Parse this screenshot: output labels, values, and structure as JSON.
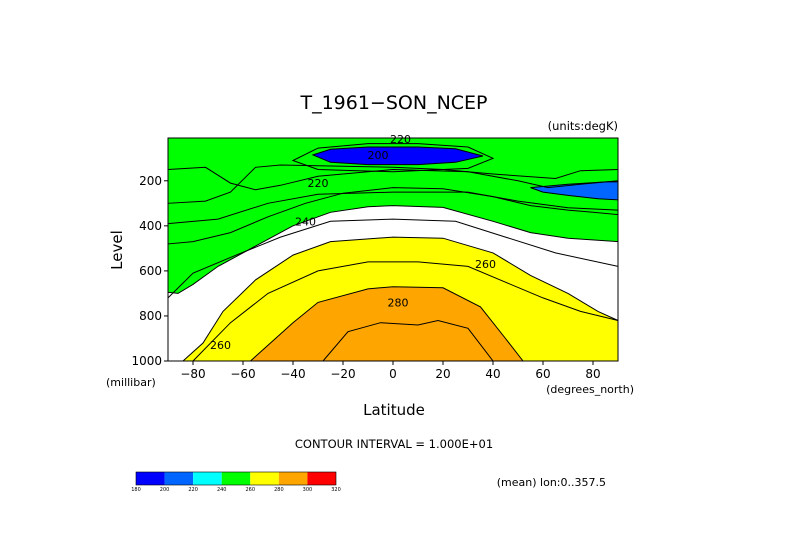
{
  "chart_data": {
    "type": "contour",
    "title": "T_1961−SON_NCEP",
    "units_label": "(units:degK)",
    "xlabel": "Latitude",
    "ylabel": "Level",
    "x_unit_label": "(degrees_north)",
    "y_unit_label": "(millibar)",
    "xlim": [
      -90,
      90
    ],
    "ylim": [
      1000,
      10
    ],
    "y_reversed": true,
    "x_ticks": [
      -80,
      -60,
      -40,
      -20,
      0,
      20,
      40,
      60,
      80
    ],
    "y_ticks": [
      200,
      400,
      600,
      800,
      1000
    ],
    "contour_interval_label": "CONTOUR INTERVAL = 1.000E+01",
    "annotation": "(mean) lon:0..357.5",
    "contour_labels": [
      {
        "text": "220",
        "lat": 3,
        "level": 15
      },
      {
        "text": "200",
        "lat": -6,
        "level": 85
      },
      {
        "text": "220",
        "lat": -30,
        "level": 210
      },
      {
        "text": "240",
        "lat": -35,
        "level": 380
      },
      {
        "text": "260",
        "lat": 37,
        "level": 570
      },
      {
        "text": "280",
        "lat": 2,
        "level": 740
      },
      {
        "text": "260",
        "lat": -69,
        "level": 930
      }
    ],
    "colorbar": {
      "boundaries": [
        180,
        200,
        220,
        240,
        260,
        280,
        300,
        320
      ],
      "colors": [
        "#0000ff",
        "#0066ff",
        "#00ffff",
        "#00ff00",
        "#ffff00",
        "#ffa500",
        "#ff0000"
      ]
    },
    "missing_color": "#ffffff",
    "contour_line_color": "#000000",
    "contours": [
      {
        "level": 200,
        "color": "#0066ff",
        "closed": false,
        "points": [
          [
            -90,
            985
          ],
          [
            -90,
            10
          ],
          [
            90,
            10
          ],
          [
            90,
            150
          ],
          [
            75,
            155
          ],
          [
            65,
            190
          ],
          [
            40,
            170
          ],
          [
            20,
            150
          ],
          [
            0,
            140
          ],
          [
            -20,
            135
          ],
          [
            -45,
            130
          ],
          [
            -55,
            140
          ],
          [
            -65,
            250
          ],
          [
            -75,
            290
          ],
          [
            -90,
            300
          ]
        ]
      },
      {
        "level": 220,
        "color": "#00ffff",
        "closed": false,
        "points": [
          [
            -90,
            985
          ],
          [
            -90,
            480
          ],
          [
            -80,
            470
          ],
          [
            -65,
            430
          ],
          [
            -50,
            360
          ],
          [
            -35,
            300
          ],
          [
            -20,
            255
          ],
          [
            0,
            230
          ],
          [
            20,
            235
          ],
          [
            40,
            270
          ],
          [
            55,
            310
          ],
          [
            70,
            330
          ],
          [
            80,
            340
          ],
          [
            90,
            350
          ],
          [
            90,
            10
          ],
          [
            -90,
            10
          ]
        ]
      },
      {
        "level": 240,
        "color": "#00ff00",
        "closed": false,
        "points": [
          [
            -90,
            985
          ],
          [
            -90,
            695
          ],
          [
            -86,
            700
          ],
          [
            -80,
            660
          ],
          [
            -70,
            580
          ],
          [
            -55,
            490
          ],
          [
            -40,
            400
          ],
          [
            -25,
            340
          ],
          [
            -10,
            315
          ],
          [
            0,
            310
          ],
          [
            20,
            318
          ],
          [
            40,
            380
          ],
          [
            55,
            430
          ],
          [
            70,
            455
          ],
          [
            90,
            470
          ],
          [
            90,
            10
          ],
          [
            -90,
            10
          ]
        ]
      },
      {
        "level": 260,
        "color": "#ffff00",
        "closed": false,
        "points": [
          [
            -84,
            1000
          ],
          [
            -76,
            920
          ],
          [
            -68,
            780
          ],
          [
            -55,
            640
          ],
          [
            -40,
            530
          ],
          [
            -25,
            470
          ],
          [
            0,
            450
          ],
          [
            20,
            455
          ],
          [
            40,
            520
          ],
          [
            55,
            620
          ],
          [
            70,
            700
          ],
          [
            82,
            780
          ],
          [
            90,
            820
          ],
          [
            90,
            1000
          ]
        ]
      },
      {
        "level": 280,
        "color": "#ffa500",
        "closed": false,
        "points": [
          [
            -57,
            1000
          ],
          [
            -40,
            830
          ],
          [
            -30,
            740
          ],
          [
            -10,
            680
          ],
          [
            0,
            670
          ],
          [
            20,
            675
          ],
          [
            35,
            760
          ],
          [
            45,
            900
          ],
          [
            52,
            1000
          ]
        ]
      },
      {
        "level": 200,
        "color": "#0000ff",
        "closed": true,
        "points": [
          [
            -32,
            85
          ],
          [
            -25,
            60
          ],
          [
            -10,
            50
          ],
          [
            10,
            50
          ],
          [
            25,
            58
          ],
          [
            36,
            90
          ],
          [
            25,
            118
          ],
          [
            10,
            128
          ],
          [
            -10,
            128
          ],
          [
            -25,
            118
          ]
        ]
      },
      {
        "level": 200,
        "color": "#0066ff",
        "closed": true,
        "points": [
          [
            55,
            230
          ],
          [
            70,
            215
          ],
          [
            85,
            205
          ],
          [
            90,
            205
          ],
          [
            90,
            285
          ],
          [
            82,
            280
          ],
          [
            70,
            265
          ],
          [
            60,
            250
          ]
        ]
      },
      {
        "level": 290,
        "color": null,
        "closed": true,
        "points": [
          [
            -28,
            1000
          ],
          [
            -18,
            870
          ],
          [
            -5,
            830
          ],
          [
            10,
            840
          ],
          [
            18,
            820
          ],
          [
            30,
            855
          ],
          [
            40,
            1000
          ]
        ]
      },
      {
        "level": 190,
        "color": null,
        "closed": true,
        "points": [
          [
            -40,
            110
          ],
          [
            -30,
            55
          ],
          [
            -10,
            35
          ],
          [
            10,
            35
          ],
          [
            30,
            50
          ],
          [
            40,
            100
          ],
          [
            30,
            145
          ],
          [
            0,
            160
          ],
          [
            -30,
            150
          ]
        ]
      },
      {
        "level": 210,
        "color": null,
        "closed": false,
        "points": [
          [
            -90,
            150
          ],
          [
            -75,
            140
          ],
          [
            -65,
            210
          ],
          [
            -55,
            240
          ],
          [
            -45,
            220
          ],
          [
            -30,
            180
          ],
          [
            0,
            150
          ],
          [
            30,
            160
          ],
          [
            50,
            200
          ],
          [
            62,
            230
          ],
          [
            75,
            215
          ],
          [
            90,
            200
          ]
        ]
      },
      {
        "level": 230,
        "color": null,
        "closed": false,
        "points": [
          [
            -90,
            390
          ],
          [
            -70,
            370
          ],
          [
            -50,
            300
          ],
          [
            -30,
            260
          ],
          [
            0,
            250
          ],
          [
            30,
            250
          ],
          [
            50,
            290
          ],
          [
            70,
            320
          ],
          [
            90,
            330
          ]
        ]
      },
      {
        "level": 250,
        "color": null,
        "closed": false,
        "points": [
          [
            -90,
            720
          ],
          [
            -80,
            610
          ],
          [
            -65,
            540
          ],
          [
            -45,
            450
          ],
          [
            -25,
            380
          ],
          [
            0,
            370
          ],
          [
            25,
            380
          ],
          [
            45,
            450
          ],
          [
            65,
            520
          ],
          [
            90,
            580
          ]
        ]
      },
      {
        "level": 270,
        "color": null,
        "closed": false,
        "points": [
          [
            -80,
            1000
          ],
          [
            -65,
            830
          ],
          [
            -50,
            700
          ],
          [
            -30,
            600
          ],
          [
            -10,
            560
          ],
          [
            10,
            560
          ],
          [
            30,
            580
          ],
          [
            45,
            650
          ],
          [
            60,
            720
          ],
          [
            75,
            780
          ],
          [
            90,
            820
          ]
        ]
      }
    ]
  }
}
